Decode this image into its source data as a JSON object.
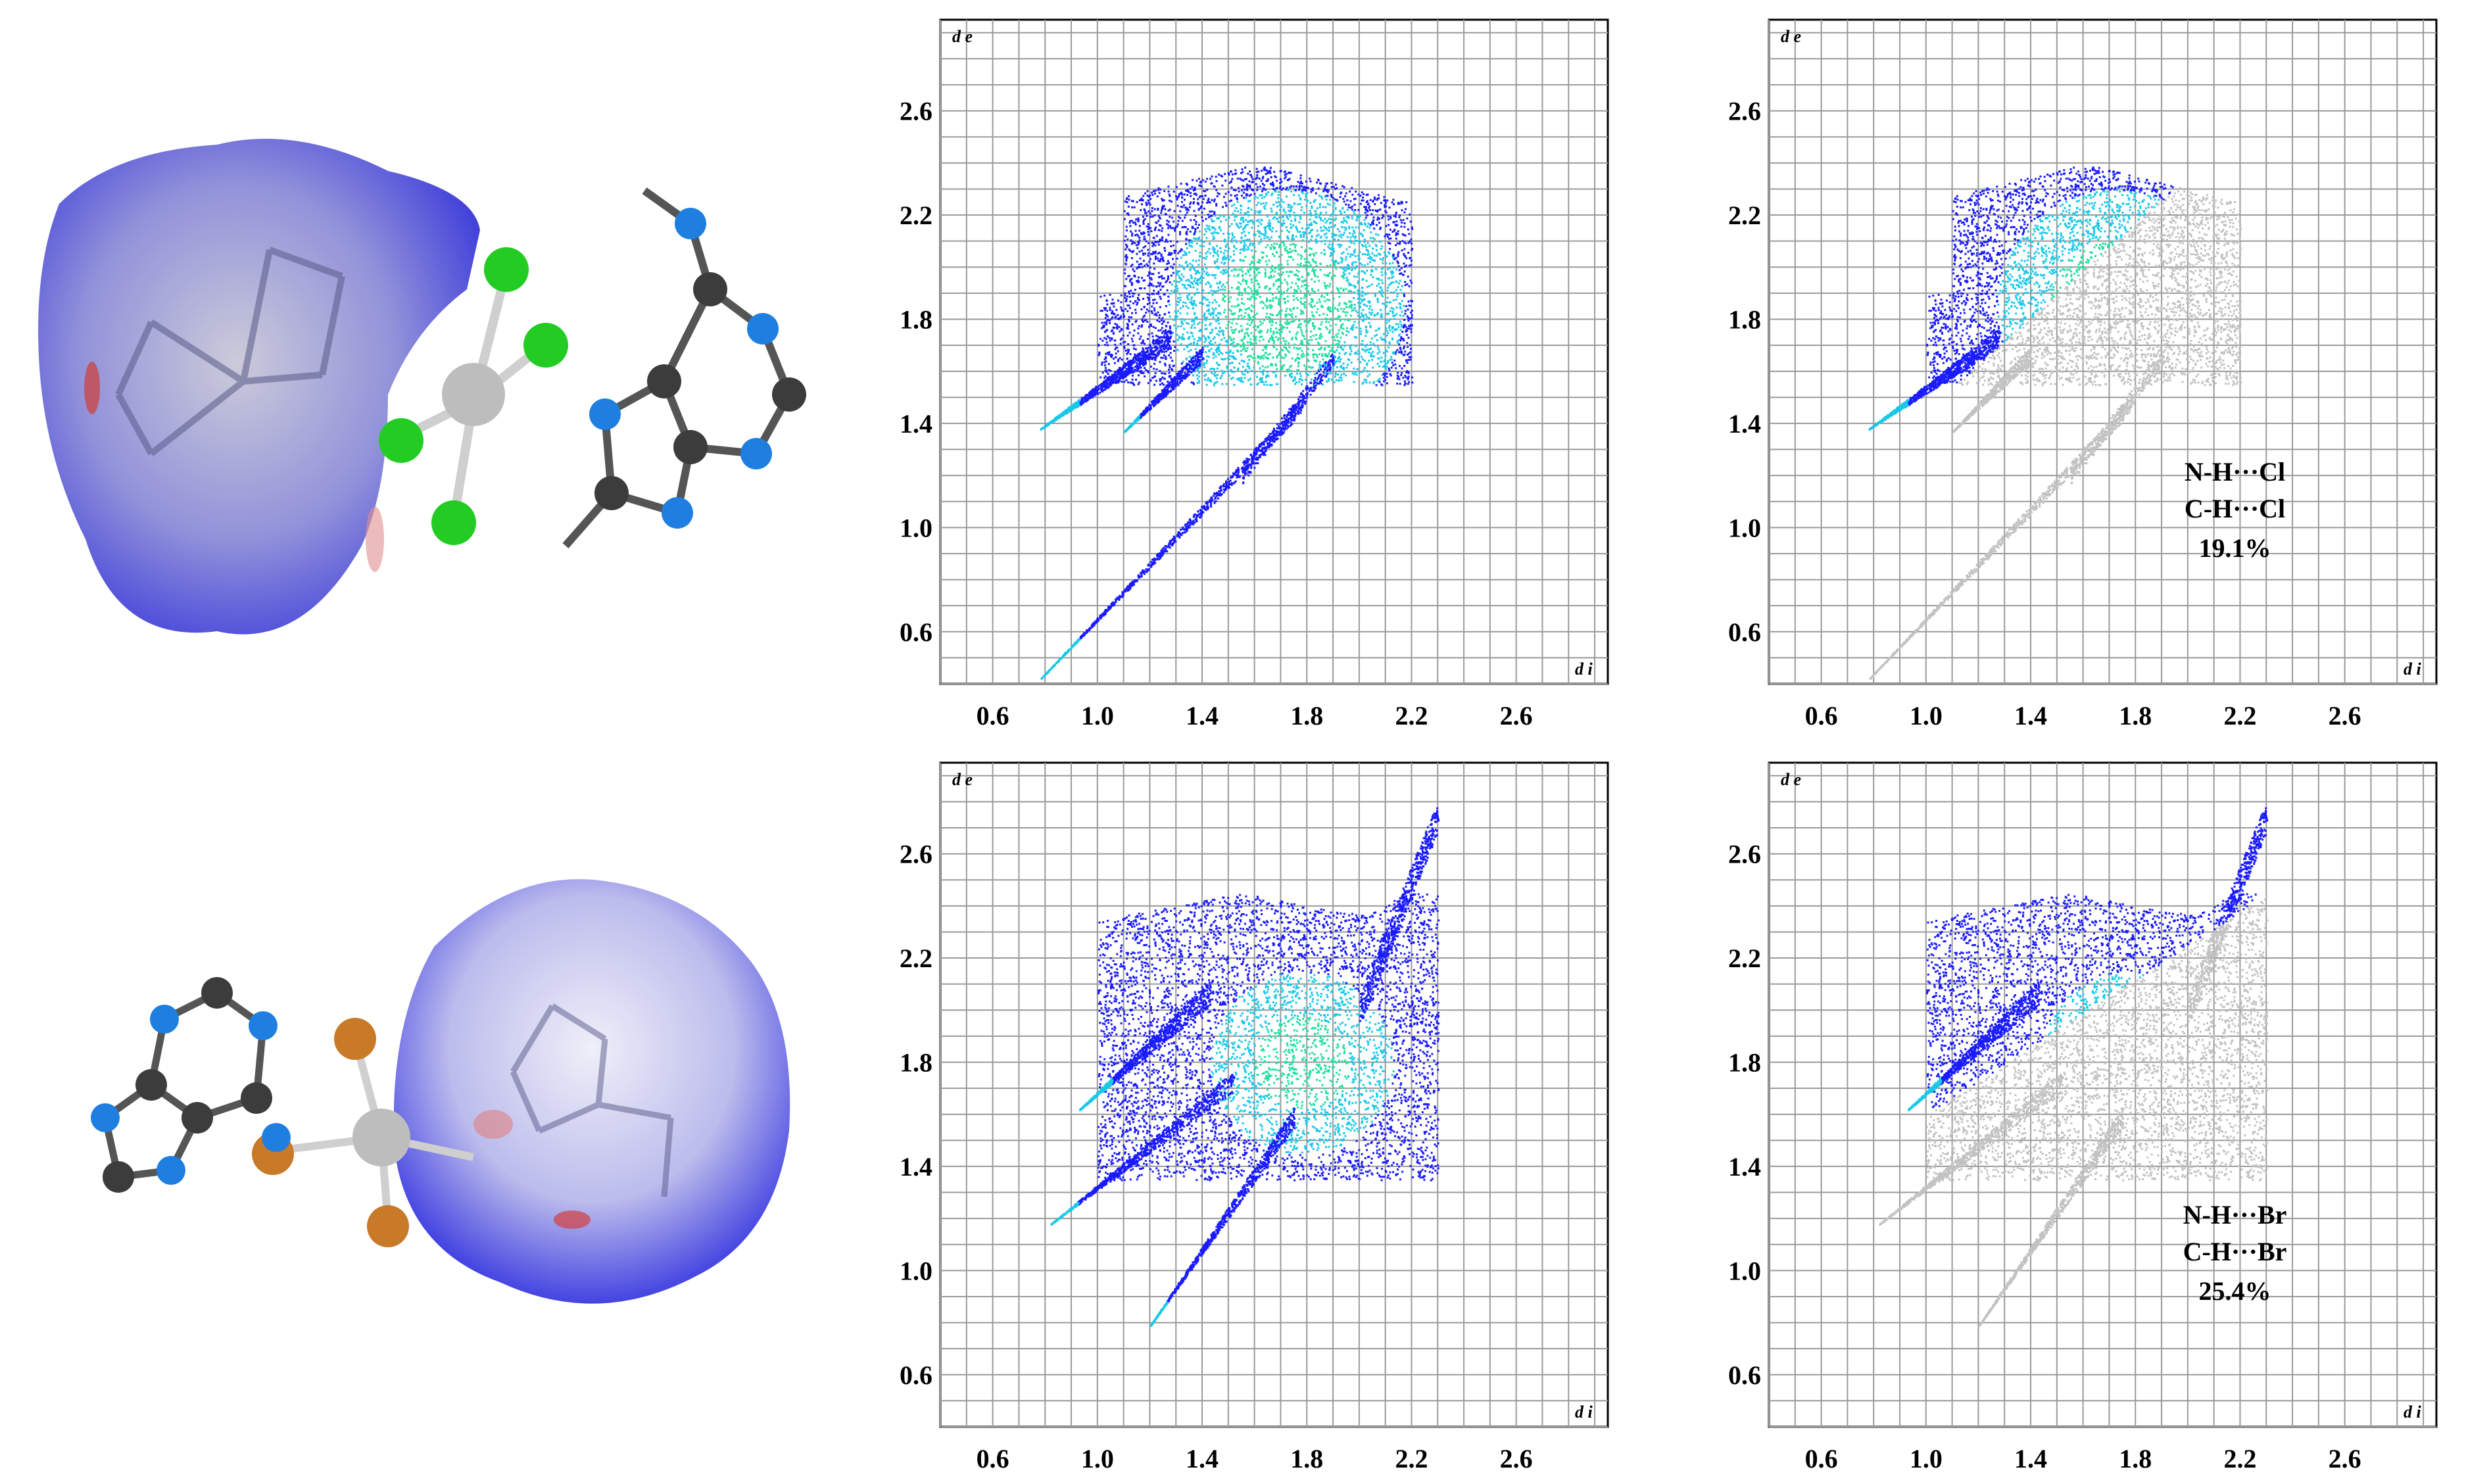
{
  "figure": {
    "colors": {
      "blue": "#1a1aff",
      "cyan": "#18c8e8",
      "green": "#20e0a0",
      "grey": "#c2c2c2",
      "chlorine": "#22cc22",
      "bromine": "#c87a28",
      "nitrogen": "#1e7fe0",
      "carbon": "#3c3c3c",
      "hydrogen": "#e8e8e8",
      "metal": "#b8b8b8",
      "surface": "#6a6ae0"
    },
    "panels": [
      {
        "id": "top-full",
        "xlabel": "d i",
        "ylabel": "d e",
        "ticks": [
          "0.6",
          "1.0",
          "1.4",
          "1.8",
          "2.2",
          "2.6"
        ]
      },
      {
        "id": "top-sel",
        "xlabel": "d i",
        "ylabel": "d e",
        "ticks": [
          "0.6",
          "1.0",
          "1.4",
          "1.8",
          "2.2",
          "2.6"
        ],
        "note": [
          "N-H···Cl",
          "C-H···Cl",
          "19.1%"
        ]
      },
      {
        "id": "bot-full",
        "xlabel": "d i",
        "ylabel": "d e",
        "ticks": [
          "0.6",
          "1.0",
          "1.4",
          "1.8",
          "2.2",
          "2.6"
        ]
      },
      {
        "id": "bot-sel",
        "xlabel": "d i",
        "ylabel": "d e",
        "ticks": [
          "0.6",
          "1.0",
          "1.4",
          "1.8",
          "2.2",
          "2.6"
        ],
        "note": [
          "N-H···Br",
          "C-H···Br",
          "25.4%"
        ]
      }
    ]
  },
  "chart_data": [
    {
      "type": "scatter",
      "xlabel": "d i",
      "ylabel": "d e",
      "xlim": [
        0.4,
        2.95
      ],
      "ylim": [
        0.4,
        2.95
      ],
      "region": "top-full",
      "description_points": [
        [
          0.78,
          0.42
        ],
        [
          0.78,
          1.38
        ],
        [
          1.0,
          1.55
        ],
        [
          1.1,
          1.37
        ],
        [
          1.55,
          1.22
        ],
        [
          1.7,
          1.85
        ],
        [
          2.15,
          2.45
        ]
      ]
    },
    {
      "type": "scatter",
      "xlabel": "d i",
      "ylabel": "d e",
      "xlim": [
        0.4,
        2.95
      ],
      "ylim": [
        0.4,
        2.95
      ],
      "region": "top-sel",
      "highlighted_percent": 19.1,
      "labels": [
        "N-H···Cl",
        "C-H···Cl"
      ]
    },
    {
      "type": "scatter",
      "xlabel": "d i",
      "ylabel": "d e",
      "xlim": [
        0.4,
        2.95
      ],
      "ylim": [
        0.4,
        2.95
      ],
      "region": "bot-full",
      "description_points": [
        [
          0.82,
          1.18
        ],
        [
          0.93,
          1.62
        ],
        [
          1.2,
          0.79
        ],
        [
          1.75,
          1.8
        ],
        [
          2.3,
          2.75
        ]
      ]
    },
    {
      "type": "scatter",
      "xlabel": "d i",
      "ylabel": "d e",
      "xlim": [
        0.4,
        2.95
      ],
      "ylim": [
        0.4,
        2.95
      ],
      "region": "bot-sel",
      "highlighted_percent": 25.4,
      "labels": [
        "N-H···Br",
        "C-H···Br"
      ]
    }
  ]
}
